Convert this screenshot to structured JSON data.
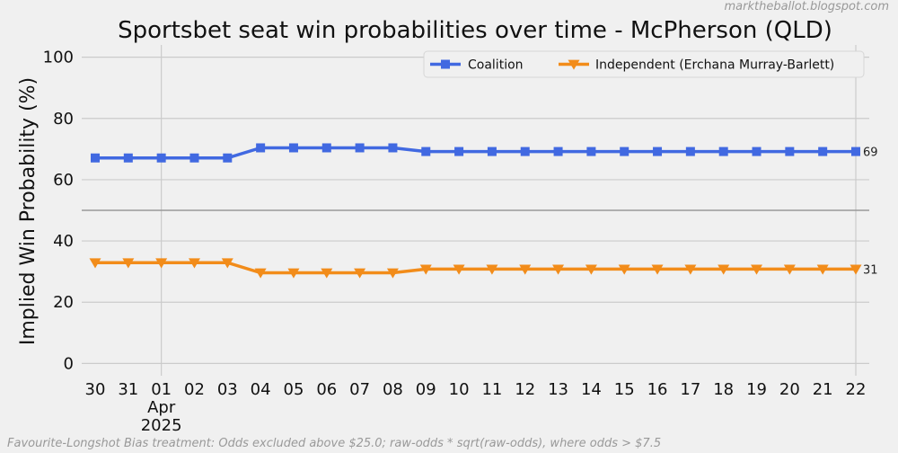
{
  "watermark": "marktheballot.blogspot.com",
  "footnote": "Favourite-Longshot Bias treatment: Odds excluded above $25.0; raw-odds * sqrt(raw-odds), where odds > $7.5",
  "chart_data": {
    "type": "line",
    "title": "Sportsbet seat win probabilities over time - McPherson (QLD)",
    "ylabel": "Implied Win Probability (%)",
    "xlabel": "",
    "categories": [
      "30",
      "31",
      "01",
      "02",
      "03",
      "04",
      "05",
      "06",
      "07",
      "08",
      "09",
      "10",
      "11",
      "12",
      "13",
      "14",
      "15",
      "16",
      "17",
      "18",
      "19",
      "20",
      "21",
      "22"
    ],
    "month_label": "Apr",
    "year_label": "2025",
    "month_start_index": 2,
    "ylim": [
      -4,
      104
    ],
    "yticks": [
      0,
      20,
      40,
      60,
      80,
      100
    ],
    "reference_line": 50,
    "grid": true,
    "legend_position": "top-right",
    "series": [
      {
        "name": "Coalition",
        "color": "#4169e1",
        "marker": "square",
        "values": [
          67.1,
          67.1,
          67.1,
          67.1,
          67.1,
          70.4,
          70.4,
          70.4,
          70.4,
          70.4,
          69.2,
          69.2,
          69.2,
          69.2,
          69.2,
          69.2,
          69.2,
          69.2,
          69.2,
          69.2,
          69.2,
          69.2,
          69.2,
          69.2
        ],
        "end_label": "69"
      },
      {
        "name": "Independent (Erchana Murray-Barlett)",
        "color": "#f28c1a",
        "marker": "triangle-down",
        "values": [
          32.9,
          32.9,
          32.9,
          32.9,
          32.9,
          29.6,
          29.6,
          29.6,
          29.6,
          29.6,
          30.8,
          30.8,
          30.8,
          30.8,
          30.8,
          30.8,
          30.8,
          30.8,
          30.8,
          30.8,
          30.8,
          30.8,
          30.8,
          30.8
        ],
        "end_label": "31"
      }
    ]
  }
}
